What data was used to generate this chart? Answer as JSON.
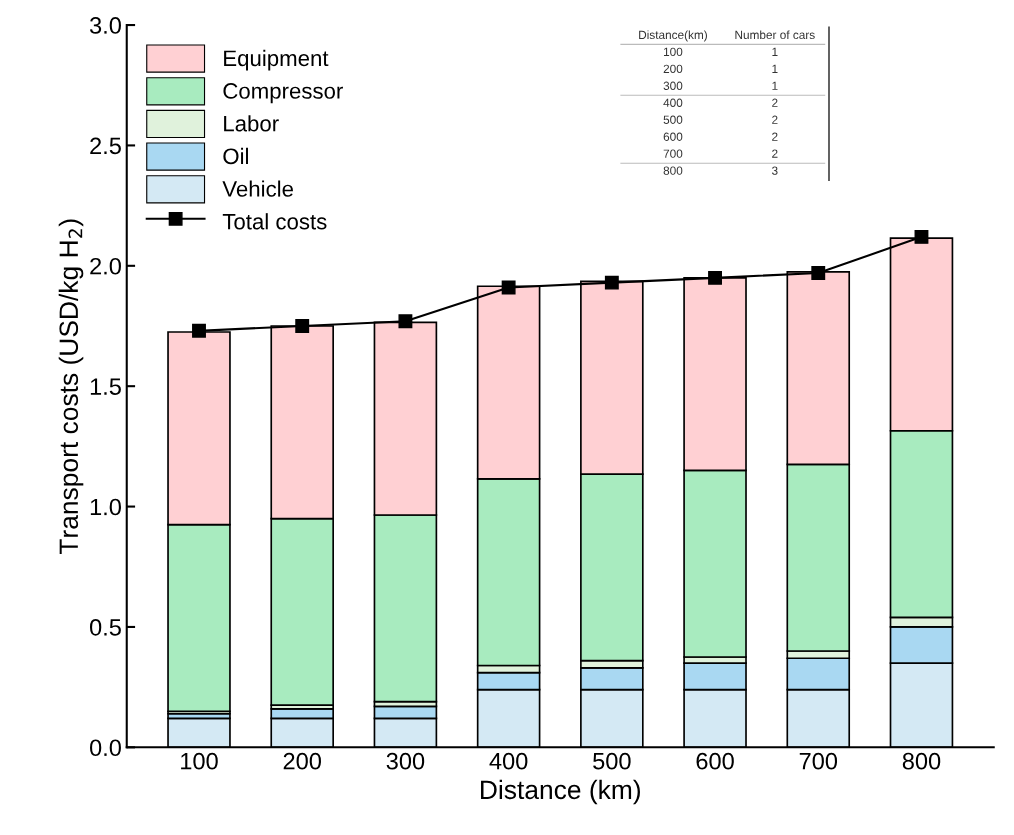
{
  "chart_data": {
    "type": "bar",
    "stacked": true,
    "xlabel": "Distance (km)",
    "ylabel": "Transport costs (USD/kg H$_{2}$)",
    "categories": [
      "100",
      "200",
      "300",
      "400",
      "500",
      "600",
      "700",
      "800"
    ],
    "series": [
      {
        "name": "Vehicle",
        "color": "#d4e9f4",
        "values": [
          0.12,
          0.12,
          0.12,
          0.24,
          0.24,
          0.24,
          0.24,
          0.35
        ]
      },
      {
        "name": "Oil",
        "color": "#a9d8f2",
        "values": [
          0.02,
          0.04,
          0.05,
          0.07,
          0.09,
          0.11,
          0.13,
          0.15
        ]
      },
      {
        "name": "Labor",
        "color": "#e0f2dc",
        "values": [
          0.01,
          0.015,
          0.02,
          0.03,
          0.03,
          0.025,
          0.03,
          0.04
        ]
      },
      {
        "name": "Compressor",
        "color": "#a8ebbf",
        "values": [
          0.775,
          0.775,
          0.775,
          0.775,
          0.775,
          0.775,
          0.775,
          0.775
        ]
      },
      {
        "name": "Equipment",
        "color": "#ffd0d3",
        "values": [
          0.8,
          0.8,
          0.8,
          0.8,
          0.8,
          0.8,
          0.8,
          0.8
        ]
      },
      {
        "name": "Total costs",
        "type": "line",
        "color": "#000000",
        "marker": "square",
        "values": [
          1.73,
          1.75,
          1.77,
          1.91,
          1.93,
          1.95,
          1.97,
          2.12
        ]
      }
    ],
    "ylim": [
      0,
      3.0
    ],
    "yticks": [
      {
        "value": 0,
        "label": "0.0"
      },
      0.5,
      {
        "value": 1,
        "label": "1.0"
      },
      1.5,
      {
        "value": 2,
        "label": "2.0"
      },
      2.5,
      {
        "value": 3,
        "label": "3.0"
      }
    ],
    "grid": false,
    "legend": "top left",
    "annotations": [
      "Distance(km)",
      "Number of cars",
      "100",
      "1",
      "200",
      "1",
      "300",
      "1",
      "400",
      "2",
      "500",
      "2",
      "600",
      "2",
      "700",
      "2",
      "800",
      "3"
    ]
  }
}
